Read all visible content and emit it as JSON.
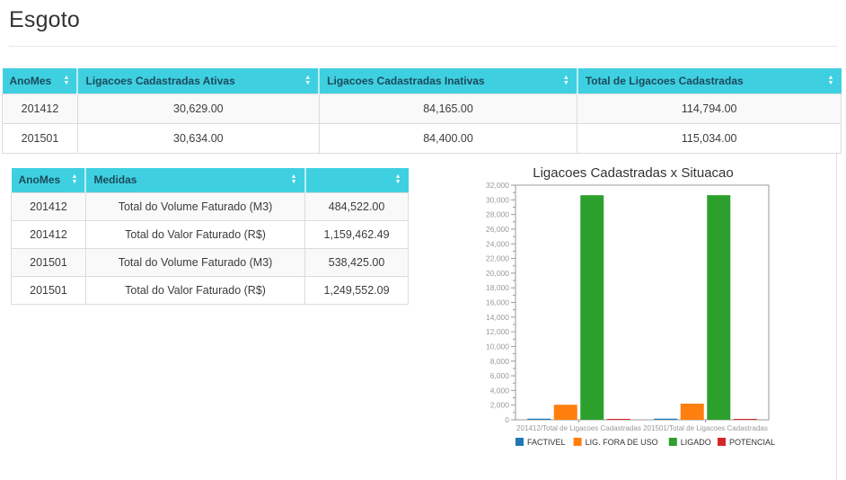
{
  "page": {
    "title": "Esgoto"
  },
  "table1": {
    "headers": [
      "AnoMes",
      "Ligacoes Cadastradas Ativas",
      "Ligacoes Cadastradas Inativas",
      "Total de Ligacoes Cadastradas"
    ],
    "rows": [
      [
        "201412",
        "30,629.00",
        "84,165.00",
        "114,794.00"
      ],
      [
        "201501",
        "30,634.00",
        "84,400.00",
        "115,034.00"
      ]
    ]
  },
  "table2": {
    "headers": [
      "AnoMes",
      "Medidas",
      ""
    ],
    "rows": [
      [
        "201412",
        "Total do Volume Faturado (M3)",
        "484,522.00"
      ],
      [
        "201412",
        "Total do Valor Faturado (R$)",
        "1,159,462.49"
      ],
      [
        "201501",
        "Total do Volume Faturado (M3)",
        "538,425.00"
      ],
      [
        "201501",
        "Total do Valor Faturado (R$)",
        "1,249,552.09"
      ]
    ]
  },
  "chart_data": {
    "type": "bar",
    "title": "Ligacoes Cadastradas x Situacao",
    "categories": [
      "201412/Total de Ligacoes Cadastradas",
      "201501/Total de Ligacoes Cadastradas"
    ],
    "series": [
      {
        "name": "FACTIVEL",
        "color": "#1f77b4",
        "values": [
          150,
          150
        ]
      },
      {
        "name": "LIG. FORA DE USO",
        "color": "#ff7f0e",
        "values": [
          2050,
          2200
        ]
      },
      {
        "name": "LIGADO",
        "color": "#2ca02c",
        "values": [
          30629,
          30634
        ]
      },
      {
        "name": "POTENCIAL",
        "color": "#d62728",
        "values": [
          100,
          100
        ]
      }
    ],
    "ylim": [
      0,
      32000
    ],
    "ytick_step": 2000,
    "legend_position": "bottom",
    "grid": false
  },
  "colors": {
    "header_bg": "#3ed0e0",
    "header_text": "#1b4a5c",
    "axis_text": "#999999",
    "axis_line": "#999999",
    "chart_title": "#333333",
    "legend_text": "#333333"
  }
}
